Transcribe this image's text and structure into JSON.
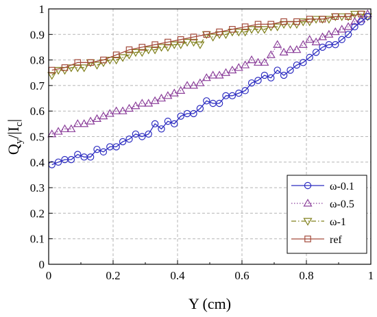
{
  "chart_data": {
    "type": "line",
    "xlabel": "Y (cm)",
    "ylabel_main": "Q",
    "ylabel_sub1": "y",
    "ylabel_mid": "/|I",
    "ylabel_sub2": "c",
    "ylabel_end": "|",
    "xlim": [
      0,
      1
    ],
    "ylim": [
      0,
      1
    ],
    "xticks": [
      "0",
      "0.2",
      "0.4",
      "0.6",
      "0.8",
      "1"
    ],
    "yticks": [
      "0",
      "0.1",
      "0.2",
      "0.3",
      "0.4",
      "0.5",
      "0.6",
      "0.7",
      "0.8",
      "0.9",
      "1"
    ],
    "grid": true,
    "legend_position": "bottom-right",
    "series": [
      {
        "name": "ω-0.1",
        "marker": "circle",
        "color": "#2b2bc0",
        "line": "solid",
        "x": [
          0.01,
          0.03,
          0.05,
          0.07,
          0.09,
          0.11,
          0.13,
          0.15,
          0.17,
          0.19,
          0.21,
          0.23,
          0.25,
          0.27,
          0.29,
          0.31,
          0.33,
          0.35,
          0.37,
          0.39,
          0.41,
          0.43,
          0.45,
          0.47,
          0.49,
          0.51,
          0.53,
          0.55,
          0.57,
          0.59,
          0.61,
          0.63,
          0.65,
          0.67,
          0.69,
          0.71,
          0.73,
          0.75,
          0.77,
          0.79,
          0.81,
          0.83,
          0.85,
          0.87,
          0.89,
          0.91,
          0.93,
          0.95,
          0.97,
          0.99
        ],
        "y": [
          0.39,
          0.4,
          0.41,
          0.41,
          0.43,
          0.42,
          0.42,
          0.45,
          0.44,
          0.46,
          0.46,
          0.48,
          0.49,
          0.51,
          0.5,
          0.51,
          0.55,
          0.53,
          0.56,
          0.55,
          0.58,
          0.59,
          0.59,
          0.61,
          0.64,
          0.63,
          0.63,
          0.66,
          0.66,
          0.67,
          0.68,
          0.71,
          0.72,
          0.74,
          0.73,
          0.76,
          0.74,
          0.76,
          0.78,
          0.79,
          0.81,
          0.83,
          0.85,
          0.86,
          0.86,
          0.88,
          0.9,
          0.93,
          0.95,
          0.97
        ]
      },
      {
        "name": "ω-0.5",
        "marker": "triangle-up",
        "color": "#8b3f9a",
        "line": "dotted",
        "x": [
          0.01,
          0.03,
          0.05,
          0.07,
          0.09,
          0.11,
          0.13,
          0.15,
          0.17,
          0.19,
          0.21,
          0.23,
          0.25,
          0.27,
          0.29,
          0.31,
          0.33,
          0.35,
          0.37,
          0.39,
          0.41,
          0.43,
          0.45,
          0.47,
          0.49,
          0.51,
          0.53,
          0.55,
          0.57,
          0.59,
          0.61,
          0.63,
          0.65,
          0.67,
          0.69,
          0.71,
          0.73,
          0.75,
          0.77,
          0.79,
          0.81,
          0.83,
          0.85,
          0.87,
          0.89,
          0.91,
          0.93,
          0.95,
          0.97,
          0.99
        ],
        "y": [
          0.51,
          0.52,
          0.53,
          0.53,
          0.55,
          0.55,
          0.56,
          0.57,
          0.58,
          0.59,
          0.6,
          0.6,
          0.61,
          0.62,
          0.63,
          0.63,
          0.64,
          0.65,
          0.66,
          0.67,
          0.68,
          0.7,
          0.7,
          0.71,
          0.73,
          0.74,
          0.74,
          0.75,
          0.76,
          0.77,
          0.78,
          0.8,
          0.79,
          0.79,
          0.82,
          0.86,
          0.83,
          0.84,
          0.84,
          0.86,
          0.88,
          0.87,
          0.89,
          0.9,
          0.91,
          0.92,
          0.93,
          0.95,
          0.96,
          0.98
        ]
      },
      {
        "name": "ω-1",
        "marker": "triangle-down",
        "color": "#7f7f1a",
        "line": "dashdot",
        "x": [
          0.01,
          0.03,
          0.05,
          0.07,
          0.09,
          0.11,
          0.13,
          0.15,
          0.17,
          0.19,
          0.21,
          0.23,
          0.25,
          0.27,
          0.29,
          0.31,
          0.33,
          0.35,
          0.37,
          0.39,
          0.41,
          0.43,
          0.45,
          0.47,
          0.49,
          0.51,
          0.53,
          0.55,
          0.57,
          0.59,
          0.61,
          0.63,
          0.65,
          0.67,
          0.69,
          0.71,
          0.73,
          0.75,
          0.77,
          0.79,
          0.81,
          0.83,
          0.85,
          0.87,
          0.89,
          0.91,
          0.93,
          0.95,
          0.97,
          0.99
        ],
        "y": [
          0.74,
          0.76,
          0.76,
          0.77,
          0.77,
          0.77,
          0.79,
          0.78,
          0.79,
          0.8,
          0.8,
          0.81,
          0.82,
          0.83,
          0.83,
          0.84,
          0.84,
          0.85,
          0.85,
          0.86,
          0.86,
          0.87,
          0.87,
          0.86,
          0.9,
          0.89,
          0.9,
          0.9,
          0.91,
          0.91,
          0.91,
          0.92,
          0.92,
          0.92,
          0.93,
          0.93,
          0.94,
          0.94,
          0.94,
          0.95,
          0.95,
          0.96,
          0.96,
          0.96,
          0.97,
          0.97,
          0.97,
          0.98,
          0.98,
          0.97
        ]
      },
      {
        "name": "ref",
        "marker": "square",
        "color": "#a34a3a",
        "line": "solid",
        "x": [
          0.01,
          0.05,
          0.09,
          0.13,
          0.17,
          0.21,
          0.25,
          0.29,
          0.33,
          0.37,
          0.41,
          0.45,
          0.49,
          0.53,
          0.57,
          0.61,
          0.65,
          0.69,
          0.73,
          0.77,
          0.81,
          0.85,
          0.89,
          0.93,
          0.97
        ],
        "y": [
          0.76,
          0.77,
          0.79,
          0.79,
          0.8,
          0.82,
          0.84,
          0.85,
          0.86,
          0.87,
          0.88,
          0.89,
          0.9,
          0.91,
          0.92,
          0.93,
          0.94,
          0.94,
          0.95,
          0.95,
          0.96,
          0.96,
          0.97,
          0.97,
          0.98
        ]
      }
    ]
  }
}
